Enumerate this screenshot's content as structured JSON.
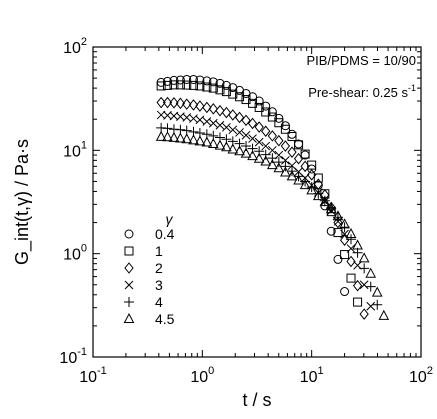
{
  "chart_data": {
    "type": "scatter",
    "title": "",
    "xlabel": "t / s",
    "ylabel": "G_int(t,γ) / Pa·s",
    "x_scale": "log",
    "y_scale": "log",
    "xlim": [
      0.1,
      100
    ],
    "ylim": [
      0.1,
      100
    ],
    "grid": false,
    "legend_position": "bottom-left",
    "legend_title": "γ",
    "x_tick_labels": [
      {
        "base": "10",
        "exp": "-1"
      },
      {
        "base": "10",
        "exp": "0"
      },
      {
        "base": "10",
        "exp": "1"
      },
      {
        "base": "10",
        "exp": "2"
      }
    ],
    "y_tick_labels": [
      {
        "base": "10",
        "exp": "-1"
      },
      {
        "base": "10",
        "exp": "0"
      },
      {
        "base": "10",
        "exp": "1"
      },
      {
        "base": "10",
        "exp": "2"
      }
    ],
    "annotations": {
      "composition": "PIB/PDMS = 10/90",
      "preshear": "Pre-shear: 0.25 s",
      "preshear_exp": "-1"
    },
    "series": [
      {
        "name": "0.4",
        "marker": "circle",
        "x": [
          0.42,
          0.48,
          0.55,
          0.63,
          0.72,
          0.83,
          0.95,
          1.1,
          1.26,
          1.45,
          1.66,
          1.9,
          2.19,
          2.51,
          2.88,
          3.31,
          3.8,
          4.37,
          5.01,
          5.75,
          6.61,
          7.59,
          8.71,
          10.0,
          11.5,
          13.2,
          15.1,
          17.4,
          20.0
        ],
        "y": [
          45.5,
          46.5,
          47.5,
          48.0,
          48.5,
          48.5,
          48.0,
          47.0,
          46.0,
          44.5,
          42.5,
          40.5,
          38.0,
          35.5,
          33.0,
          30.0,
          26.8,
          23.6,
          20.4,
          17.3,
          14.3,
          11.5,
          9.0,
          6.6,
          4.6,
          2.9,
          1.65,
          0.88,
          0.43
        ]
      },
      {
        "name": "1",
        "marker": "square",
        "x": [
          0.42,
          0.48,
          0.55,
          0.63,
          0.72,
          0.83,
          0.95,
          1.1,
          1.26,
          1.45,
          1.66,
          1.9,
          2.19,
          2.51,
          2.88,
          3.31,
          3.8,
          4.37,
          5.01,
          5.75,
          6.61,
          7.59,
          8.71,
          10.0,
          11.5,
          13.2,
          15.1,
          17.4,
          20.0,
          22.9,
          26.3
        ],
        "y": [
          42.0,
          42.5,
          43.0,
          43.0,
          42.8,
          42.5,
          42.0,
          41.0,
          40.0,
          38.5,
          37.0,
          35.0,
          33.0,
          31.0,
          28.5,
          26.0,
          23.5,
          21.0,
          18.5,
          16.0,
          13.6,
          11.3,
          9.2,
          7.2,
          5.4,
          3.8,
          2.55,
          1.6,
          0.98,
          0.58,
          0.34
        ]
      },
      {
        "name": "2",
        "marker": "diamond",
        "x": [
          0.42,
          0.48,
          0.55,
          0.63,
          0.72,
          0.83,
          0.95,
          1.1,
          1.26,
          1.45,
          1.66,
          1.9,
          2.19,
          2.51,
          2.88,
          3.31,
          3.8,
          4.37,
          5.01,
          5.75,
          6.61,
          7.59,
          8.71,
          10.0,
          11.5,
          13.2,
          15.1,
          17.4,
          20.0,
          22.9,
          26.3,
          30.2
        ],
        "y": [
          29.0,
          29.0,
          28.8,
          28.5,
          28.0,
          27.5,
          26.8,
          26.0,
          25.2,
          24.2,
          23.2,
          22.0,
          20.8,
          19.5,
          18.2,
          16.8,
          15.3,
          13.8,
          12.4,
          11.0,
          9.6,
          8.3,
          7.0,
          5.8,
          4.7,
          3.7,
          2.8,
          2.0,
          1.35,
          0.84,
          0.49,
          0.26
        ]
      },
      {
        "name": "3",
        "marker": "x",
        "x": [
          0.42,
          0.48,
          0.55,
          0.63,
          0.72,
          0.83,
          0.95,
          1.1,
          1.26,
          1.45,
          1.66,
          1.9,
          2.19,
          2.51,
          2.88,
          3.31,
          3.8,
          4.37,
          5.01,
          5.75,
          6.61,
          7.59,
          8.71,
          10.0,
          11.5,
          13.2,
          15.1,
          17.4,
          20.0,
          22.9,
          26.3,
          30.2,
          34.7
        ],
        "y": [
          22.0,
          21.8,
          21.5,
          21.2,
          20.8,
          20.3,
          19.7,
          19.0,
          18.3,
          17.5,
          16.7,
          15.8,
          14.9,
          14.0,
          13.0,
          12.0,
          11.0,
          10.0,
          9.0,
          8.0,
          7.1,
          6.2,
          5.4,
          4.6,
          3.9,
          3.2,
          2.6,
          2.05,
          1.55,
          1.12,
          0.77,
          0.5,
          0.31
        ]
      },
      {
        "name": "4",
        "marker": "plus",
        "x": [
          0.42,
          0.48,
          0.55,
          0.63,
          0.72,
          0.83,
          0.95,
          1.1,
          1.26,
          1.45,
          1.66,
          1.9,
          2.19,
          2.51,
          2.88,
          3.31,
          3.8,
          4.37,
          5.01,
          5.75,
          6.61,
          7.59,
          8.71,
          10.0,
          11.5,
          13.2,
          15.1,
          17.4,
          20.0,
          22.9,
          26.3,
          30.2,
          34.7,
          39.8
        ],
        "y": [
          16.5,
          16.3,
          16.0,
          15.8,
          15.5,
          15.1,
          14.7,
          14.3,
          13.8,
          13.3,
          12.8,
          12.2,
          11.6,
          11.0,
          10.4,
          9.8,
          9.1,
          8.4,
          7.7,
          7.0,
          6.3,
          5.6,
          5.0,
          4.4,
          3.8,
          3.25,
          2.75,
          2.25,
          1.8,
          1.38,
          1.02,
          0.72,
          0.48,
          0.32
        ]
      },
      {
        "name": "4.5",
        "marker": "triangle",
        "x": [
          0.42,
          0.48,
          0.55,
          0.63,
          0.72,
          0.83,
          0.95,
          1.1,
          1.26,
          1.45,
          1.66,
          1.9,
          2.19,
          2.51,
          2.88,
          3.31,
          3.8,
          4.37,
          5.01,
          5.75,
          6.61,
          7.59,
          8.71,
          10.0,
          11.5,
          13.2,
          15.1,
          17.4,
          20.0,
          22.9,
          26.3,
          30.2,
          34.7,
          39.8,
          45.7
        ],
        "y": [
          13.5,
          13.4,
          13.2,
          13.0,
          12.8,
          12.5,
          12.2,
          11.9,
          11.5,
          11.1,
          10.7,
          10.2,
          9.8,
          9.3,
          8.8,
          8.3,
          7.8,
          7.2,
          6.7,
          6.1,
          5.6,
          5.1,
          4.6,
          4.1,
          3.6,
          3.15,
          2.7,
          2.3,
          1.92,
          1.55,
          1.2,
          0.9,
          0.64,
          0.42,
          0.25
        ]
      }
    ]
  }
}
